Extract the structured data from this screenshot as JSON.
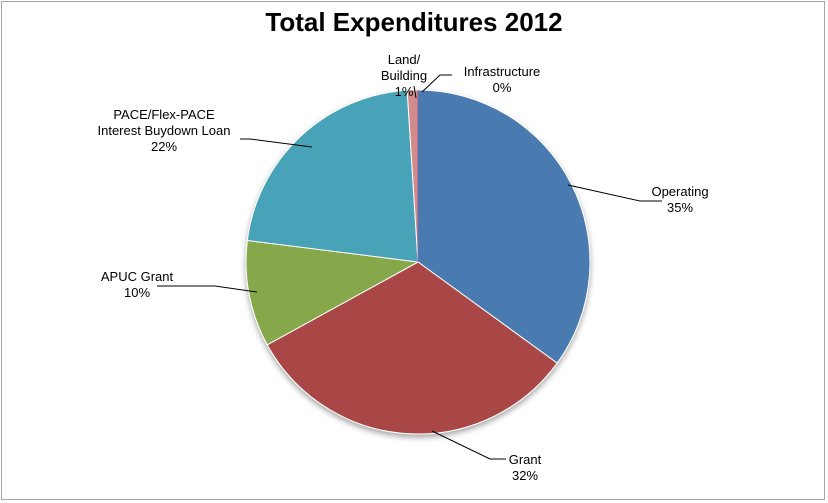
{
  "chart_data": {
    "type": "pie",
    "title": "Total Expenditures 2012",
    "slices": [
      {
        "label": "Operating",
        "label_lines": [
          "Operating"
        ],
        "percent_label": "35%",
        "value": 35,
        "color": "#4a7ab0"
      },
      {
        "label": "Grant",
        "label_lines": [
          "Grant"
        ],
        "percent_label": "32%",
        "value": 32,
        "color": "#a84744"
      },
      {
        "label": "APUC Grant",
        "label_lines": [
          "APUC Grant"
        ],
        "percent_label": "10%",
        "value": 10,
        "color": "#86a84c"
      },
      {
        "label": "PACE/Flex-PACE Interest Buydown Loan",
        "label_lines": [
          "PACE/Flex-PACE",
          "Interest Buydown Loan"
        ],
        "percent_label": "22%",
        "value": 22,
        "color": "#4aa3b8"
      },
      {
        "label": "Land/ Building",
        "label_lines": [
          "Land/",
          "Building"
        ],
        "percent_label": "1%",
        "value": 1,
        "color": "#d28a8a"
      },
      {
        "label": "Infrastructure",
        "label_lines": [
          "Infrastructure"
        ],
        "percent_label": "0%",
        "value": 0,
        "color": "#8064a2"
      }
    ],
    "legend": "none"
  }
}
